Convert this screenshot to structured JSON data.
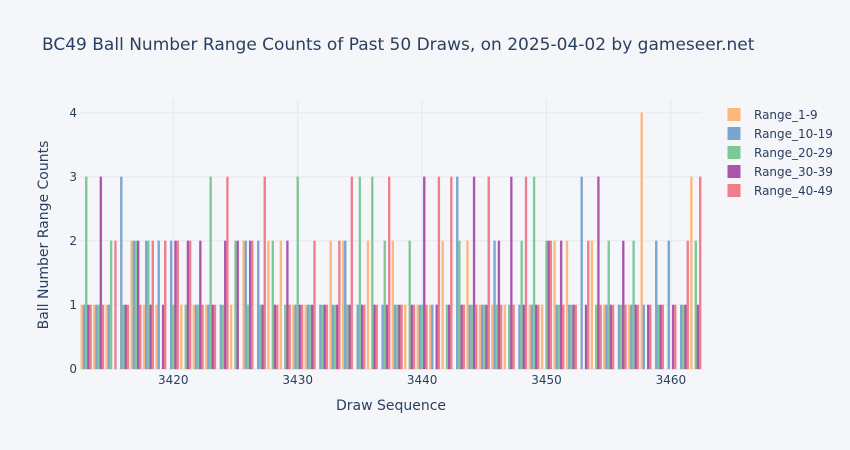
{
  "chart_data": {
    "type": "bar",
    "title": "BC49 Ball Number Range Counts of Past 50 Draws, on 2025-04-02 by gameseer.net",
    "xlabel": "Draw Sequence",
    "ylabel": "Ball Number Range Counts",
    "xlim": [
      3412.5,
      3462.5
    ],
    "ylim": [
      0,
      4.2
    ],
    "x_ticks": [
      3420,
      3430,
      3440,
      3450,
      3460
    ],
    "y_ticks": [
      0,
      1,
      2,
      3,
      4
    ],
    "grid": true,
    "legend_position": "right",
    "x": [
      3413,
      3414,
      3415,
      3416,
      3417,
      3418,
      3419,
      3420,
      3421,
      3422,
      3423,
      3424,
      3425,
      3426,
      3427,
      3428,
      3429,
      3430,
      3431,
      3432,
      3433,
      3434,
      3435,
      3436,
      3437,
      3438,
      3439,
      3440,
      3441,
      3442,
      3443,
      3444,
      3445,
      3446,
      3447,
      3448,
      3449,
      3450,
      3451,
      3452,
      3453,
      3454,
      3455,
      3456,
      3457,
      3458,
      3459,
      3460,
      3461,
      3462
    ],
    "series": [
      {
        "name": "Range_1-9",
        "color": "#fdb77a",
        "values": [
          1,
          1,
          1,
          0,
          2,
          1,
          1,
          0,
          1,
          1,
          1,
          0,
          1,
          2,
          0,
          2,
          2,
          1,
          1,
          0,
          2,
          2,
          0,
          2,
          0,
          2,
          1,
          1,
          1,
          2,
          0,
          2,
          1,
          1,
          1,
          0,
          1,
          1,
          2,
          2,
          0,
          2,
          1,
          0,
          1,
          4,
          0,
          0,
          0,
          3
        ]
      },
      {
        "name": "Range_10-19",
        "color": "#7aa5cf",
        "values": [
          1,
          1,
          1,
          3,
          2,
          2,
          2,
          2,
          0,
          1,
          1,
          1,
          0,
          2,
          2,
          0,
          0,
          1,
          1,
          1,
          1,
          2,
          1,
          0,
          1,
          1,
          0,
          1,
          1,
          0,
          3,
          1,
          1,
          2,
          0,
          1,
          1,
          0,
          1,
          1,
          3,
          0,
          1,
          1,
          1,
          1,
          2,
          2,
          1,
          0
        ]
      },
      {
        "name": "Range_20-29",
        "color": "#7ec897",
        "values": [
          3,
          1,
          2,
          1,
          2,
          2,
          0,
          1,
          1,
          1,
          3,
          1,
          2,
          1,
          1,
          2,
          1,
          3,
          1,
          1,
          1,
          1,
          3,
          3,
          2,
          1,
          2,
          1,
          0,
          1,
          2,
          1,
          1,
          1,
          1,
          2,
          3,
          2,
          1,
          1,
          0,
          1,
          2,
          1,
          2,
          0,
          1,
          0,
          1,
          2
        ]
      },
      {
        "name": "Range_30-39",
        "color": "#a955a9",
        "values": [
          1,
          3,
          0,
          1,
          2,
          1,
          1,
          2,
          2,
          2,
          1,
          2,
          2,
          2,
          1,
          1,
          2,
          1,
          1,
          1,
          1,
          1,
          1,
          1,
          1,
          1,
          1,
          3,
          1,
          1,
          1,
          3,
          1,
          2,
          3,
          1,
          1,
          2,
          2,
          1,
          1,
          3,
          1,
          2,
          1,
          1,
          1,
          1,
          1,
          1
        ]
      },
      {
        "name": "Range_40-49",
        "color": "#ee7e8c",
        "values": [
          1,
          1,
          2,
          1,
          1,
          2,
          2,
          2,
          2,
          1,
          1,
          3,
          0,
          2,
          3,
          1,
          1,
          1,
          2,
          1,
          2,
          3,
          1,
          1,
          3,
          1,
          1,
          1,
          3,
          3,
          1,
          1,
          3,
          1,
          1,
          3,
          1,
          2,
          1,
          1,
          2,
          1,
          1,
          1,
          1,
          1,
          1,
          1,
          2,
          3
        ]
      }
    ]
  }
}
